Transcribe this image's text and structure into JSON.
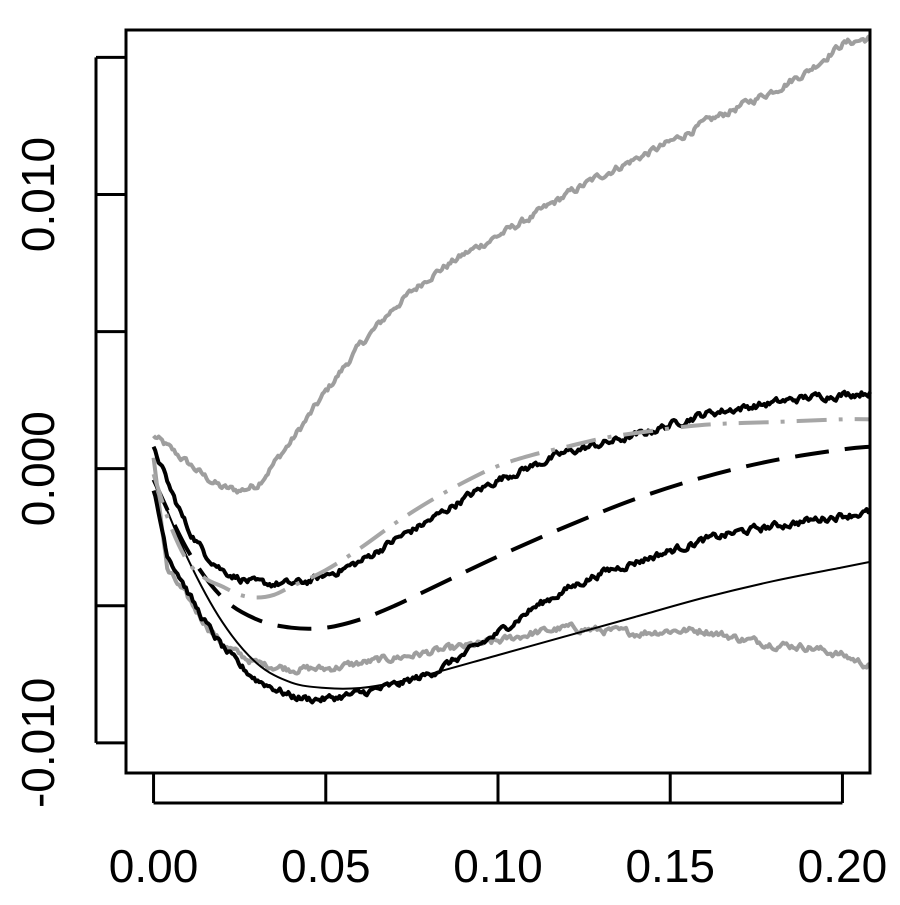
{
  "chart_data": {
    "type": "line",
    "title": "",
    "xlabel": "",
    "ylabel": "",
    "xlim": [
      -0.008,
      0.208
    ],
    "ylim": [
      -0.0111,
      0.016
    ],
    "x_ticks": [
      0.0,
      0.05,
      0.1,
      0.15,
      0.2
    ],
    "x_tick_labels": [
      "0.00",
      "0.05",
      "0.10",
      "0.15",
      "0.20"
    ],
    "y_ticks": [
      -0.01,
      -0.005,
      0.0,
      0.005,
      0.01,
      0.015
    ],
    "y_tick_labels": [
      "-0.010",
      "",
      "0.000",
      "",
      "0.010",
      ""
    ],
    "grid": false,
    "legend": "none",
    "series": [
      {
        "color": "#9e9e9e",
        "style": "solid",
        "width": 4,
        "noisy": true,
        "x": [
          0.0,
          0.005,
          0.01,
          0.015,
          0.02,
          0.025,
          0.03,
          0.035,
          0.04,
          0.05,
          0.06,
          0.07,
          0.08,
          0.09,
          0.1,
          0.11,
          0.12,
          0.13,
          0.14,
          0.15,
          0.16,
          0.17,
          0.18,
          0.19,
          0.2,
          0.208
        ],
        "y": [
          0.0012,
          0.0007,
          0.0002,
          -0.0003,
          -0.0007,
          -0.0008,
          -0.0006,
          0.0002,
          0.001,
          0.0028,
          0.0045,
          0.0059,
          0.007,
          0.0078,
          0.0085,
          0.0092,
          0.01,
          0.0107,
          0.0113,
          0.0119,
          0.0126,
          0.0132,
          0.0138,
          0.0145,
          0.0155,
          0.0157
        ]
      },
      {
        "color": "#9e9e9e",
        "style": "solid",
        "width": 4,
        "noisy": true,
        "x": [
          0.0,
          0.004,
          0.008,
          0.012,
          0.016,
          0.02,
          0.025,
          0.03,
          0.035,
          0.04,
          0.05,
          0.06,
          0.07,
          0.08,
          0.09,
          0.1,
          0.11,
          0.12,
          0.13,
          0.14,
          0.15,
          0.16,
          0.17,
          0.18,
          0.19,
          0.2,
          0.208
        ],
        "y": [
          0.0004,
          -0.0037,
          -0.0044,
          -0.0051,
          -0.0058,
          -0.0064,
          -0.0068,
          -0.0071,
          -0.0072,
          -0.0073,
          -0.0073,
          -0.0071,
          -0.0069,
          -0.0067,
          -0.0065,
          -0.0063,
          -0.006,
          -0.0058,
          -0.0059,
          -0.006,
          -0.0059,
          -0.0059,
          -0.0062,
          -0.0064,
          -0.0065,
          -0.0068,
          -0.0072
        ]
      },
      {
        "color": "#000000",
        "style": "solid",
        "width": 4,
        "noisy": true,
        "x": [
          0.0,
          0.005,
          0.01,
          0.015,
          0.02,
          0.025,
          0.03,
          0.035,
          0.04,
          0.045,
          0.05,
          0.06,
          0.07,
          0.08,
          0.09,
          0.1,
          0.11,
          0.12,
          0.13,
          0.14,
          0.15,
          0.16,
          0.17,
          0.18,
          0.19,
          0.2,
          0.208
        ],
        "y": [
          0.0008,
          -0.0008,
          -0.0022,
          -0.0031,
          -0.0037,
          -0.004,
          -0.0042,
          -0.0042,
          -0.0042,
          -0.0041,
          -0.0039,
          -0.0034,
          -0.0026,
          -0.0019,
          -0.0011,
          -0.0004,
          0.0001,
          0.0006,
          0.0009,
          0.0012,
          0.0016,
          0.002,
          0.0022,
          0.0024,
          0.0026,
          0.0027,
          0.0028
        ]
      },
      {
        "color": "#000000",
        "style": "solid",
        "width": 4,
        "noisy": true,
        "x": [
          0.0,
          0.004,
          0.008,
          0.012,
          0.016,
          0.02,
          0.025,
          0.03,
          0.035,
          0.04,
          0.045,
          0.05,
          0.06,
          0.07,
          0.08,
          0.09,
          0.1,
          0.11,
          0.12,
          0.13,
          0.14,
          0.15,
          0.16,
          0.17,
          0.18,
          0.19,
          0.2,
          0.208
        ],
        "y": [
          -0.0008,
          -0.0031,
          -0.004,
          -0.005,
          -0.0058,
          -0.0065,
          -0.0072,
          -0.0077,
          -0.008,
          -0.0083,
          -0.0084,
          -0.0084,
          -0.0082,
          -0.0079,
          -0.0075,
          -0.0068,
          -0.006,
          -0.0051,
          -0.0044,
          -0.0038,
          -0.0034,
          -0.003,
          -0.0026,
          -0.0023,
          -0.0021,
          -0.0019,
          -0.0017,
          -0.0016
        ]
      },
      {
        "color": "#000000",
        "style": "solid",
        "width": 2,
        "noisy": false,
        "x": [
          0.0,
          0.01,
          0.02,
          0.03,
          0.04,
          0.05,
          0.06,
          0.07,
          0.08,
          0.1,
          0.12,
          0.14,
          0.16,
          0.18,
          0.2,
          0.208
        ],
        "y": [
          -0.0003,
          -0.0033,
          -0.0056,
          -0.0071,
          -0.0078,
          -0.008,
          -0.008,
          -0.0078,
          -0.0075,
          -0.0068,
          -0.0061,
          -0.0054,
          -0.0047,
          -0.0041,
          -0.0036,
          -0.0034
        ]
      },
      {
        "color": "#000000",
        "style": "longdash",
        "width": 4,
        "noisy": false,
        "x": [
          0.0,
          0.01,
          0.02,
          0.03,
          0.04,
          0.05,
          0.06,
          0.07,
          0.08,
          0.1,
          0.12,
          0.14,
          0.16,
          0.18,
          0.2,
          0.208
        ],
        "y": [
          -0.0004,
          -0.003,
          -0.0047,
          -0.0055,
          -0.0058,
          -0.0058,
          -0.0055,
          -0.005,
          -0.0044,
          -0.0032,
          -0.0021,
          -0.0011,
          -0.0003,
          0.0003,
          0.0007,
          0.0008
        ]
      },
      {
        "color": "#a6a6a6",
        "style": "dashdot",
        "width": 4,
        "noisy": false,
        "x": [
          0.0,
          0.005,
          0.01,
          0.015,
          0.02,
          0.025,
          0.03,
          0.035,
          0.04,
          0.05,
          0.06,
          0.07,
          0.08,
          0.09,
          0.1,
          0.11,
          0.12,
          0.13,
          0.14,
          0.16,
          0.18,
          0.2,
          0.208
        ],
        "y": [
          -0.0002,
          -0.0021,
          -0.0034,
          -0.004,
          -0.0043,
          -0.0046,
          -0.0047,
          -0.0046,
          -0.0043,
          -0.0037,
          -0.0029,
          -0.002,
          -0.0012,
          -0.0005,
          0.0001,
          0.0005,
          0.0008,
          0.0011,
          0.0013,
          0.0016,
          0.0017,
          0.0018,
          0.0018
        ]
      }
    ]
  }
}
